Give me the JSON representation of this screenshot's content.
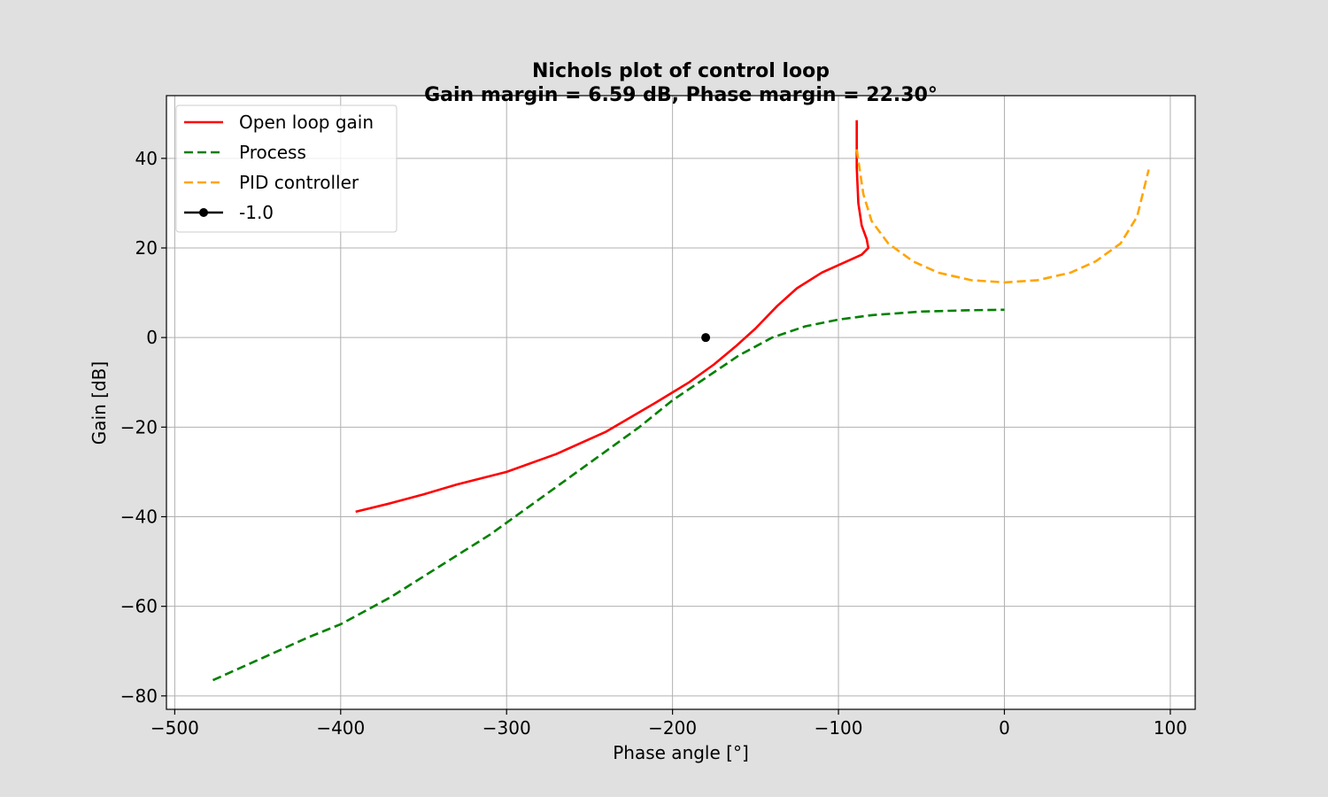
{
  "chart_data": {
    "type": "line",
    "title": "Nichols plot of control loop",
    "subtitle": "Gain margin = 6.59 dB, Phase margin = 22.30°",
    "xlabel": "Phase angle [°]",
    "ylabel": "Gain [dB]",
    "xlim": [
      -505,
      115
    ],
    "ylim": [
      -83,
      54
    ],
    "xticks": [
      -500,
      -400,
      -300,
      -200,
      -100,
      0,
      100
    ],
    "yticks": [
      -80,
      -60,
      -40,
      -20,
      0,
      20,
      40
    ],
    "xtick_labels": [
      "−500",
      "−400",
      "−300",
      "−200",
      "−100",
      "0",
      "100"
    ],
    "ytick_labels": [
      "−80",
      "−60",
      "−40",
      "−20",
      "0",
      "20",
      "40"
    ],
    "grid": true,
    "legend_position": "top-left",
    "series": [
      {
        "name": "Open loop gain",
        "color": "#ff0000",
        "style": "solid",
        "points": [
          [
            -391,
            -38.9
          ],
          [
            -370,
            -37.0
          ],
          [
            -350,
            -35.0
          ],
          [
            -330,
            -32.8
          ],
          [
            -300,
            -30.0
          ],
          [
            -270,
            -26.0
          ],
          [
            -240,
            -21.0
          ],
          [
            -210,
            -14.5
          ],
          [
            -190,
            -10.0
          ],
          [
            -175,
            -6.0
          ],
          [
            -162,
            -2.0
          ],
          [
            -150,
            2.0
          ],
          [
            -137,
            7.0
          ],
          [
            -125,
            11.0
          ],
          [
            -110,
            14.5
          ],
          [
            -95,
            17.0
          ],
          [
            -86,
            18.5
          ],
          [
            -82,
            20.0
          ],
          [
            -83,
            22.0
          ],
          [
            -86,
            25.0
          ],
          [
            -88,
            30.0
          ],
          [
            -89,
            38.0
          ],
          [
            -89,
            48.5
          ]
        ]
      },
      {
        "name": "Process",
        "color": "#008000",
        "style": "dashed",
        "points": [
          [
            -477,
            -76.5
          ],
          [
            -450,
            -72.0
          ],
          [
            -420,
            -67.0
          ],
          [
            -400,
            -64.0
          ],
          [
            -370,
            -58.0
          ],
          [
            -340,
            -51.0
          ],
          [
            -310,
            -44.0
          ],
          [
            -280,
            -36.0
          ],
          [
            -250,
            -28.0
          ],
          [
            -220,
            -20.0
          ],
          [
            -200,
            -14.0
          ],
          [
            -180,
            -9.0
          ],
          [
            -160,
            -4.0
          ],
          [
            -140,
            0.0
          ],
          [
            -120,
            2.5
          ],
          [
            -100,
            4.0
          ],
          [
            -80,
            5.0
          ],
          [
            -50,
            5.8
          ],
          [
            -20,
            6.1
          ],
          [
            0,
            6.2
          ]
        ]
      },
      {
        "name": "PID controller",
        "color": "#ffa500",
        "style": "dashed",
        "points": [
          [
            -89,
            42.0
          ],
          [
            -85,
            32.0
          ],
          [
            -80,
            26.0
          ],
          [
            -70,
            21.0
          ],
          [
            -55,
            17.0
          ],
          [
            -40,
            14.5
          ],
          [
            -20,
            12.8
          ],
          [
            0,
            12.3
          ],
          [
            20,
            12.8
          ],
          [
            40,
            14.5
          ],
          [
            55,
            17.0
          ],
          [
            70,
            21.0
          ],
          [
            80,
            27.0
          ],
          [
            87,
            37.5
          ]
        ]
      },
      {
        "name": "-1.0",
        "color": "#000000",
        "style": "marker",
        "points": [
          [
            -180,
            0
          ]
        ]
      }
    ]
  }
}
